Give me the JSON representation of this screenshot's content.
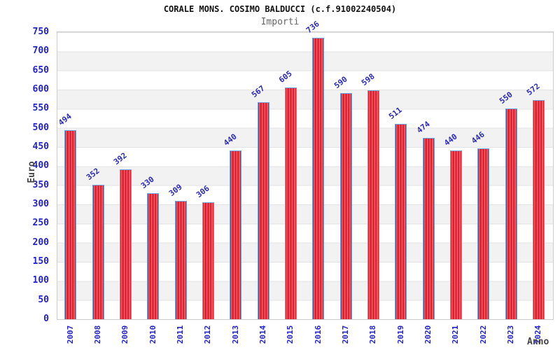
{
  "chart_data": {
    "type": "bar",
    "title": "CORALE MONS. COSIMO BALDUCCI (c.f.91002240504)",
    "subtitle": "Importi",
    "xlabel": "Anno",
    "ylabel": "Euro",
    "categories": [
      "2007",
      "2008",
      "2009",
      "2010",
      "2011",
      "2012",
      "2013",
      "2014",
      "2015",
      "2016",
      "2017",
      "2018",
      "2019",
      "2020",
      "2021",
      "2022",
      "2023",
      "2024"
    ],
    "values": [
      494,
      352,
      392,
      330,
      309,
      306,
      440,
      567,
      605,
      736,
      590,
      598,
      511,
      474,
      440,
      446,
      550,
      572
    ],
    "ylim": [
      0,
      750
    ],
    "yticks": [
      0,
      50,
      100,
      150,
      200,
      250,
      300,
      350,
      400,
      450,
      500,
      550,
      600,
      650,
      700,
      750
    ],
    "grid": "alternating-horizontal-bands",
    "legend": "none",
    "value_labels": "rotated-above-bars",
    "category_labels": "rotated-vertical",
    "colors": {
      "bar_fill": "#d6071c",
      "bar_fill_highlight": "#f4767c",
      "bar_border": "#6fa3e0",
      "tick_label": "#2222cc",
      "value_label": "#2a2ab8",
      "band_gray": "#f2f2f2",
      "grid_line": "#e3e3e3",
      "plot_border": "#cccccc",
      "title": "#111111",
      "subtitle": "#666666",
      "axis_title": "#444444"
    }
  }
}
